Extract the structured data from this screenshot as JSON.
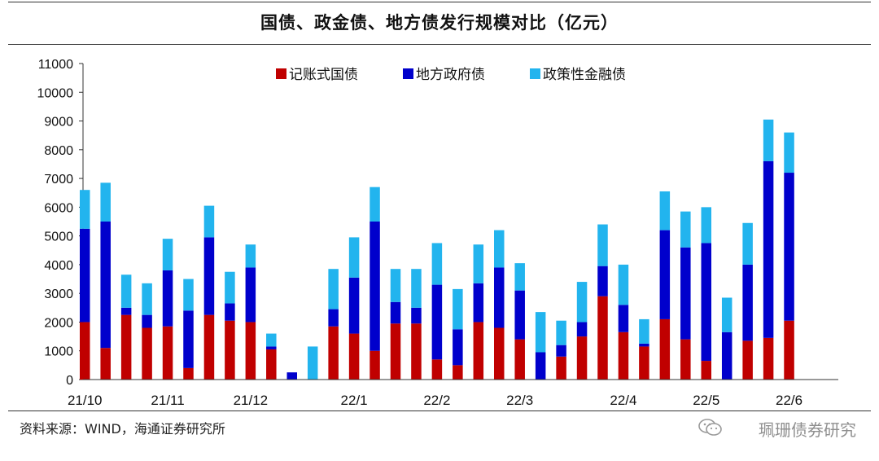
{
  "title": "国债、政金债、地方债发行规模对比（亿元）",
  "source": "资料来源：WIND，海通证券研究所",
  "brand": "珮珊债券研究",
  "colors": {
    "treasury": "#c00000",
    "local": "#0000cc",
    "policy": "#22b4ee"
  },
  "chart_data": {
    "type": "bar",
    "stacked": true,
    "ylim": [
      0,
      11000
    ],
    "yticks": [
      0,
      1000,
      2000,
      3000,
      4000,
      5000,
      6000,
      7000,
      8000,
      9000,
      10000,
      11000
    ],
    "legend_position": "top",
    "series": [
      {
        "name": "记账式国债",
        "values": [
          2000,
          1100,
          2250,
          1800,
          1850,
          400,
          2250,
          2050,
          2000,
          1050,
          0,
          0,
          1850,
          1600,
          1000,
          1950,
          1950,
          700,
          500,
          2000,
          1800,
          1400,
          0,
          800,
          1500,
          2900,
          1650,
          1150,
          2100,
          1400,
          650,
          0,
          1350,
          1450,
          2050
        ]
      },
      {
        "name": "地方政府债",
        "values": [
          3250,
          4400,
          250,
          450,
          1950,
          2000,
          2700,
          600,
          1900,
          100,
          250,
          0,
          600,
          1950,
          4500,
          750,
          550,
          2600,
          1250,
          1350,
          2100,
          1700,
          950,
          400,
          500,
          1050,
          950,
          100,
          3100,
          3200,
          4100,
          1650,
          2650,
          6150,
          5150
        ]
      },
      {
        "name": "政策性金融债",
        "values": [
          1350,
          1350,
          1150,
          1100,
          1100,
          1100,
          1100,
          1100,
          800,
          450,
          0,
          1150,
          1400,
          1400,
          1200,
          1150,
          1350,
          1450,
          1400,
          1350,
          1300,
          950,
          1400,
          850,
          1400,
          1450,
          1400,
          850,
          1350,
          1250,
          1250,
          1200,
          1450,
          1450,
          1400
        ]
      }
    ],
    "x_labels": [
      {
        "label": "21/10",
        "bar": 0
      },
      {
        "label": "21/11",
        "bar": 4
      },
      {
        "label": "21/12",
        "bar": 8
      },
      {
        "label": "22/1",
        "bar": 13
      },
      {
        "label": "22/2",
        "bar": 17
      },
      {
        "label": "22/3",
        "bar": 21
      },
      {
        "label": "22/4",
        "bar": 26
      },
      {
        "label": "22/5",
        "bar": 30
      },
      {
        "label": "22/6",
        "bar": 34
      }
    ]
  }
}
